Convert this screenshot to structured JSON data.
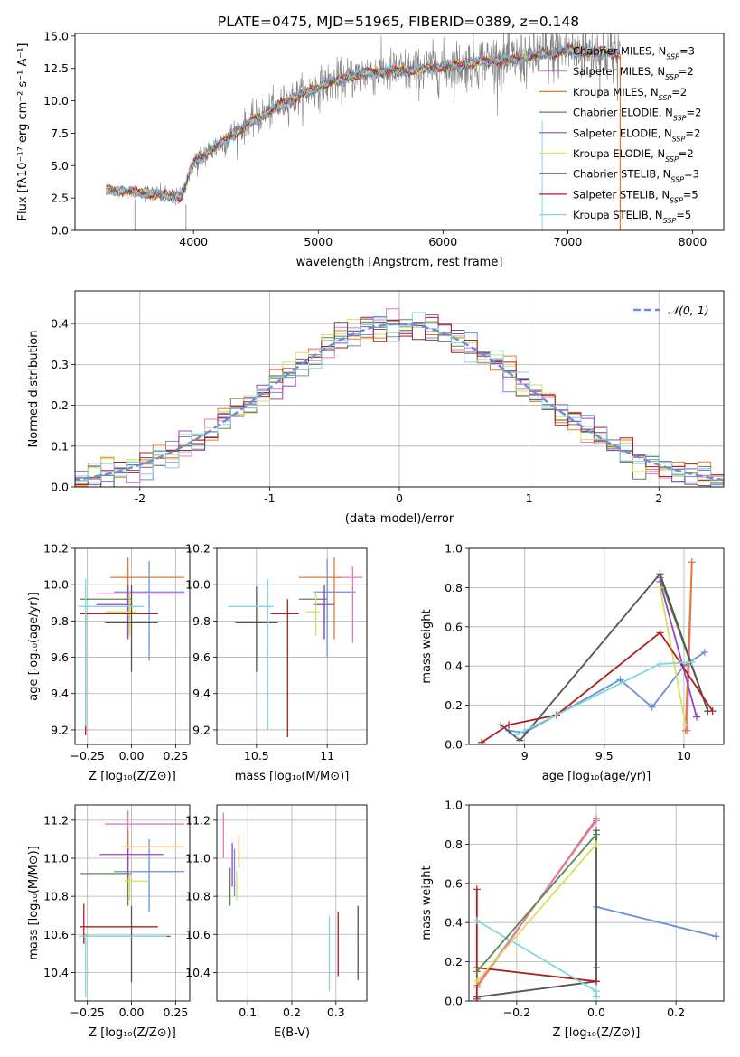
{
  "figure_title": "PLATE=0475, MJD=51965, FIBERID=0389, z=0.148",
  "model_colors": {
    "Chabrier MILES": "#6a8fd8",
    "Salpeter MILES": "#e377c2",
    "Kroupa MILES": "#e07b2e",
    "Chabrier ELODIE": "#5a8a4a",
    "Salpeter ELODIE": "#9b44c4",
    "Kroupa ELODIE": "#d6e05a",
    "Chabrier STELIB": "#555555",
    "Salpeter STELIB": "#b01d1d",
    "Kroupa STELIB": "#7fd8dc"
  },
  "chart_data": [
    {
      "id": "spectrum",
      "type": "line",
      "title": "PLATE=0475, MJD=51965, FIBERID=0389, z=0.148",
      "xlabel": "wavelength [Angstrom, rest frame]",
      "ylabel": "Flux [fλ10⁻¹⁷ erg cm⁻² s⁻¹ A⁻¹]",
      "xlim": [
        3050,
        8250
      ],
      "ylim": [
        0,
        15.2
      ],
      "xticks": [
        4000,
        5000,
        6000,
        7000,
        8000
      ],
      "yticks": [
        0.0,
        2.5,
        5.0,
        7.5,
        10.0,
        12.5,
        15.0
      ],
      "grid": false,
      "legend_position": "top-right",
      "data_x_range": [
        3300,
        7420
      ],
      "data_trend": {
        "x": [
          3300,
          3500,
          3700,
          3900,
          4000,
          4200,
          4500,
          4800,
          5100,
          5400,
          5700,
          6000,
          6300,
          6600,
          6800,
          7000,
          7300,
          7420
        ],
        "y": [
          3.1,
          3.0,
          2.8,
          2.6,
          5.2,
          6.6,
          8.6,
          10.2,
          11.4,
          12.2,
          12.3,
          12.6,
          13.0,
          13.2,
          13.6,
          13.9,
          13.7,
          13.6
        ]
      },
      "legend": [
        {
          "name": "Chabrier MILES, N$_{SSP}$=3",
          "color": "#6a8fd8"
        },
        {
          "name": "Salpeter MILES, N$_{SSP}$=2",
          "color": "#e377c2"
        },
        {
          "name": "Kroupa MILES, N$_{SSP}$=2",
          "color": "#e07b2e"
        },
        {
          "name": "Chabrier ELODIE, N$_{SSP}$=2",
          "color": "#5a8a4a"
        },
        {
          "name": "Salpeter ELODIE, N$_{SSP}$=2",
          "color": "#9b44c4"
        },
        {
          "name": "Kroupa ELODIE, N$_{SSP}$=2",
          "color": "#d6e05a"
        },
        {
          "name": "Chabrier STELIB, N$_{SSP}$=3",
          "color": "#555555"
        },
        {
          "name": "Salpeter STELIB, N$_{SSP}$=5",
          "color": "#b01d1d"
        },
        {
          "name": "Kroupa STELIB, N$_{SSP}$=5",
          "color": "#7fd8dc"
        }
      ],
      "legend_texts": [
        "Chabrier MILES, N",
        "Salpeter MILES, N",
        "Kroupa MILES, N",
        "Chabrier ELODIE, N",
        "Salpeter ELODIE, N",
        "Kroupa ELODIE, N",
        "Chabrier STELIB, N",
        "Salpeter STELIB, N",
        "Kroupa STELIB, N"
      ],
      "legend_nssp": [
        "=3",
        "=2",
        "=2",
        "=2",
        "=2",
        "=2",
        "=3",
        "=5",
        "=5"
      ],
      "legend_sub": "SSP"
    },
    {
      "id": "residual_hist",
      "type": "histogram",
      "xlabel": "(data-model)/error",
      "ylabel": "Normed distribution",
      "xlim": [
        -2.5,
        2.5
      ],
      "ylim": [
        0,
        0.48
      ],
      "xticks": [
        -2,
        -1,
        0,
        1,
        2
      ],
      "yticks": [
        0.0,
        0.1,
        0.2,
        0.3,
        0.4
      ],
      "grid": true,
      "legend_position": "top-right",
      "legend_label": "𝒩(0, 1)",
      "bin_width": 0.1,
      "gaussian": {
        "mean": 0,
        "sigma": 1,
        "color": "#6a8fd8",
        "style": "dashed"
      }
    },
    {
      "id": "age_vs_Z",
      "type": "errorbar",
      "xlabel": "Z [log₁₀(Z/Z⊙)]",
      "ylabel": "age  [log₁₀(age/yr)]",
      "xlim": [
        -0.32,
        0.33
      ],
      "ylim": [
        9.12,
        10.2
      ],
      "xticks": [
        -0.25,
        0.0,
        0.25
      ],
      "xtick_labels": [
        "−0.25",
        "0.00",
        "0.25"
      ],
      "yticks": [
        9.2,
        9.4,
        9.6,
        9.8,
        10.0,
        10.2
      ],
      "grid": true,
      "points": [
        {
          "model": "Chabrier MILES",
          "x": [
            -0.1,
            0.3
          ],
          "y": [
            9.58,
            10.13
          ],
          "cx": 0.1,
          "cy": 9.96
        },
        {
          "model": "Salpeter MILES",
          "x": [
            -0.2,
            0.3
          ],
          "y": [
            9.8,
            10.1
          ],
          "cx": -0.02,
          "cy": 9.95
        },
        {
          "model": "Kroupa MILES",
          "x": [
            -0.12,
            0.3
          ],
          "y": [
            9.7,
            10.15
          ],
          "cx": -0.02,
          "cy": 10.04
        },
        {
          "model": "Chabrier ELODIE",
          "x": [
            -0.29,
            0.0
          ],
          "y": [
            9.7,
            10.0
          ],
          "cx": -0.02,
          "cy": 9.92
        },
        {
          "model": "Salpeter ELODIE",
          "x": [
            -0.2,
            0.0
          ],
          "y": [
            9.7,
            9.99
          ],
          "cx": -0.02,
          "cy": 9.89
        },
        {
          "model": "Kroupa ELODIE",
          "x": [
            -0.15,
            0.03
          ],
          "y": [
            9.72,
            9.96
          ],
          "cx": -0.01,
          "cy": 9.85
        },
        {
          "model": "Chabrier STELIB",
          "x": [
            -0.15,
            0.15
          ],
          "y": [
            9.52,
            10.0
          ],
          "cx": 0.0,
          "cy": 9.79
        },
        {
          "model": "Salpeter STELIB",
          "x": [
            -0.29,
            0.15
          ],
          "y": [
            9.17,
            9.84
          ],
          "cx": -0.26,
          "cy": 9.84
        },
        {
          "model": "Kroupa STELIB",
          "x": [
            -0.3,
            0.07
          ],
          "y": [
            9.22,
            10.03
          ],
          "cx": -0.26,
          "cy": 9.88
        }
      ]
    },
    {
      "id": "age_vs_mass",
      "type": "errorbar",
      "xlabel": "mass [log₁₀(M/M⊙)]",
      "ylabel": "",
      "xlim": [
        10.22,
        11.28
      ],
      "ylim": [
        9.12,
        10.2
      ],
      "xticks": [
        10.5,
        11.0
      ],
      "yticks": [
        9.2,
        9.4,
        9.6,
        9.8,
        10.0,
        10.2
      ],
      "grid": true,
      "points": [
        {
          "model": "Chabrier MILES",
          "x": [
            10.9,
            11.2
          ],
          "y": [
            9.6,
            10.14
          ],
          "cx": 11.0,
          "cy": 9.96
        },
        {
          "model": "Salpeter MILES",
          "x": [
            11.05,
            11.25
          ],
          "y": [
            9.68,
            10.1
          ],
          "cx": 11.18,
          "cy": 10.04
        },
        {
          "model": "Kroupa MILES",
          "x": [
            10.8,
            11.1
          ],
          "y": [
            9.7,
            10.15
          ],
          "cx": 11.05,
          "cy": 10.04
        },
        {
          "model": "Chabrier ELODIE",
          "x": [
            10.8,
            11.0
          ],
          "y": [
            9.7,
            10.0
          ],
          "cx": 10.98,
          "cy": 9.92
        },
        {
          "model": "Salpeter ELODIE",
          "x": [
            10.9,
            11.05
          ],
          "y": [
            9.7,
            9.99
          ],
          "cx": 10.98,
          "cy": 9.89
        },
        {
          "model": "Kroupa ELODIE",
          "x": [
            10.85,
            10.95
          ],
          "y": [
            9.72,
            9.96
          ],
          "cx": 10.92,
          "cy": 9.85
        },
        {
          "model": "Chabrier STELIB",
          "x": [
            10.35,
            10.65
          ],
          "y": [
            9.52,
            9.99
          ],
          "cx": 10.5,
          "cy": 9.79
        },
        {
          "model": "Salpeter STELIB",
          "x": [
            10.6,
            10.8
          ],
          "y": [
            9.16,
            9.92
          ],
          "cx": 10.72,
          "cy": 9.84
        },
        {
          "model": "Kroupa STELIB",
          "x": [
            10.3,
            10.62
          ],
          "y": [
            9.2,
            10.03
          ],
          "cx": 10.58,
          "cy": 9.88
        }
      ]
    },
    {
      "id": "massweight_vs_age",
      "type": "line",
      "xlabel": "age  [log₁₀(age/yr)]",
      "ylabel": "mass weight",
      "xlim": [
        8.65,
        10.25
      ],
      "ylim": [
        0,
        1.0
      ],
      "xticks": [
        9.0,
        9.5,
        10.0
      ],
      "yticks": [
        0.0,
        0.2,
        0.4,
        0.6,
        0.8,
        1.0
      ],
      "grid": true,
      "series": [
        {
          "model": "Chabrier MILES",
          "x": [
            8.9,
            9.0,
            9.6,
            9.8,
            10.0,
            10.13
          ],
          "y": [
            0.07,
            0.06,
            0.33,
            0.19,
            0.4,
            0.47
          ]
        },
        {
          "model": "Salpeter MILES",
          "x": [
            10.02,
            10.05
          ],
          "y": [
            0.07,
            0.93
          ]
        },
        {
          "model": "Kroupa MILES",
          "x": [
            10.01,
            10.05
          ],
          "y": [
            0.07,
            0.93
          ]
        },
        {
          "model": "Chabrier ELODIE",
          "x": [
            9.85,
            10.15
          ],
          "y": [
            0.85,
            0.17
          ]
        },
        {
          "model": "Salpeter ELODIE",
          "x": [
            9.85,
            10.08
          ],
          "y": [
            0.83,
            0.14
          ]
        },
        {
          "model": "Kroupa ELODIE",
          "x": [
            9.85,
            10.01
          ],
          "y": [
            0.8,
            0.1
          ]
        },
        {
          "model": "Chabrier STELIB",
          "x": [
            8.85,
            8.97,
            9.85,
            10.15
          ],
          "y": [
            0.1,
            0.02,
            0.87,
            0.17
          ]
        },
        {
          "model": "Salpeter STELIB",
          "x": [
            8.73,
            8.9,
            9.2,
            9.85,
            10.18
          ],
          "y": [
            0.01,
            0.1,
            0.15,
            0.57,
            0.17
          ]
        },
        {
          "model": "Kroupa STELIB",
          "x": [
            8.95,
            9.85,
            10.05
          ],
          "y": [
            0.05,
            0.41,
            0.42
          ]
        }
      ]
    },
    {
      "id": "mass_vs_Z",
      "type": "errorbar",
      "xlabel": "Z [log₁₀(Z/Z⊙)]",
      "ylabel": "mass [log₁₀(M/M⊙)]",
      "xlim": [
        -0.32,
        0.33
      ],
      "ylim": [
        10.25,
        11.28
      ],
      "xticks": [
        -0.25,
        0.0,
        0.25
      ],
      "xtick_labels": [
        "−0.25",
        "0.00",
        "0.25"
      ],
      "yticks": [
        10.4,
        10.6,
        10.8,
        11.0,
        11.2
      ],
      "grid": true,
      "points": [
        {
          "model": "Chabrier MILES",
          "x": [
            -0.1,
            0.3
          ],
          "y": [
            10.72,
            11.1
          ],
          "cx": 0.1,
          "cy": 10.93
        },
        {
          "model": "Salpeter MILES",
          "x": [
            -0.15,
            0.3
          ],
          "y": [
            11.0,
            11.25
          ],
          "cx": -0.02,
          "cy": 11.18
        },
        {
          "model": "Kroupa MILES",
          "x": [
            -0.05,
            0.3
          ],
          "y": [
            10.95,
            11.15
          ],
          "cx": -0.02,
          "cy": 11.06
        },
        {
          "model": "Chabrier ELODIE",
          "x": [
            -0.29,
            0.0
          ],
          "y": [
            10.75,
            11.0
          ],
          "cx": -0.02,
          "cy": 10.92
        },
        {
          "model": "Salpeter ELODIE",
          "x": [
            -0.18,
            0.18
          ],
          "y": [
            10.9,
            11.05
          ],
          "cx": -0.02,
          "cy": 11.02
        },
        {
          "model": "Kroupa ELODIE",
          "x": [
            -0.04,
            0.1
          ],
          "y": [
            10.78,
            10.93
          ],
          "cx": -0.01,
          "cy": 10.88
        },
        {
          "model": "Chabrier STELIB",
          "x": [
            -0.28,
            0.22
          ],
          "y": [
            10.35,
            10.75
          ],
          "cx": 0.0,
          "cy": 10.59
        },
        {
          "model": "Salpeter STELIB",
          "x": [
            -0.29,
            0.15
          ],
          "y": [
            10.55,
            10.76
          ],
          "cx": -0.27,
          "cy": 10.64
        },
        {
          "model": "Kroupa STELIB",
          "x": [
            -0.3,
            0.2
          ],
          "y": [
            10.27,
            10.6
          ],
          "cx": -0.26,
          "cy": 10.59
        }
      ]
    },
    {
      "id": "mass_vs_EBV",
      "type": "errorbar",
      "xlabel": "E(B-V)",
      "ylabel": "",
      "xlim": [
        0.03,
        0.37
      ],
      "ylim": [
        10.25,
        11.28
      ],
      "xticks": [
        0.1,
        0.2,
        0.3
      ],
      "yticks": [
        10.4,
        10.6,
        10.8,
        11.0,
        11.2
      ],
      "grid": true,
      "points": [
        {
          "model": "Chabrier MILES",
          "x": [
            0.07,
            0.07
          ],
          "y": [
            10.8,
            11.05
          ],
          "cx": 0.07,
          "cy": 10.93
        },
        {
          "model": "Salpeter MILES",
          "x": [
            0.045,
            0.045
          ],
          "y": [
            11.0,
            11.24
          ],
          "cx": 0.045,
          "cy": 11.18
        },
        {
          "model": "Kroupa MILES",
          "x": [
            0.08,
            0.08
          ],
          "y": [
            10.95,
            11.12
          ],
          "cx": 0.08,
          "cy": 11.06
        },
        {
          "model": "Chabrier ELODIE",
          "x": [
            0.06,
            0.06
          ],
          "y": [
            10.75,
            10.95
          ],
          "cx": 0.06,
          "cy": 10.9
        },
        {
          "model": "Salpeter ELODIE",
          "x": [
            0.065,
            0.065
          ],
          "y": [
            10.85,
            11.08
          ],
          "cx": 0.065,
          "cy": 11.0
        },
        {
          "model": "Kroupa ELODIE",
          "x": [
            0.075,
            0.075
          ],
          "y": [
            10.78,
            10.93
          ],
          "cx": 0.075,
          "cy": 10.88
        },
        {
          "model": "Chabrier STELIB",
          "x": [
            0.35,
            0.35
          ],
          "y": [
            10.36,
            10.75
          ],
          "cx": 0.35,
          "cy": 10.59
        },
        {
          "model": "Salpeter STELIB",
          "x": [
            0.305,
            0.305
          ],
          "y": [
            10.38,
            10.72
          ],
          "cx": 0.305,
          "cy": 10.64
        },
        {
          "model": "Kroupa STELIB",
          "x": [
            0.285,
            0.285
          ],
          "y": [
            10.3,
            10.7
          ],
          "cx": 0.285,
          "cy": 10.55
        }
      ]
    },
    {
      "id": "massweight_vs_Z",
      "type": "line",
      "xlabel": "Z [log₁₀(Z/Z⊙)]",
      "ylabel": "mass weight",
      "xlim": [
        -0.32,
        0.32
      ],
      "ylim": [
        0,
        1.0
      ],
      "xticks": [
        -0.2,
        0.0,
        0.2
      ],
      "xtick_labels": [
        "−0.2",
        "0.0",
        "0.2"
      ],
      "yticks": [
        0.0,
        0.2,
        0.4,
        0.6,
        0.8,
        1.0
      ],
      "grid": true,
      "series": [
        {
          "model": "Chabrier MILES",
          "x": [
            0.0,
            0.3
          ],
          "y": [
            0.48,
            0.33
          ]
        },
        {
          "model": "Kroupa MILES",
          "x": [
            -0.3,
            0.0
          ],
          "y": [
            0.07,
            0.93
          ]
        },
        {
          "model": "Salpeter MILES",
          "x": [
            -0.3,
            0.0
          ],
          "y": [
            0.08,
            0.92
          ]
        },
        {
          "model": "Chabrier STELIB",
          "x": [
            -0.3,
            0.0,
            0.0,
            0.0
          ],
          "y": [
            0.02,
            0.1,
            0.87,
            0.17
          ]
        },
        {
          "model": "Salpeter STELIB",
          "x": [
            -0.3,
            -0.3,
            -0.3,
            0.0
          ],
          "y": [
            0.57,
            0.01,
            0.17,
            0.1
          ]
        },
        {
          "model": "Kroupa STELIB",
          "x": [
            -0.3,
            0.0,
            0.0
          ],
          "y": [
            0.41,
            0.05,
            0.02
          ]
        },
        {
          "model": "Chabrier ELODIE",
          "x": [
            -0.3,
            0.0
          ],
          "y": [
            0.15,
            0.85
          ]
        },
        {
          "model": "Kroupa ELODIE",
          "x": [
            -0.3,
            0.0
          ],
          "y": [
            0.1,
            0.8
          ]
        }
      ]
    }
  ]
}
